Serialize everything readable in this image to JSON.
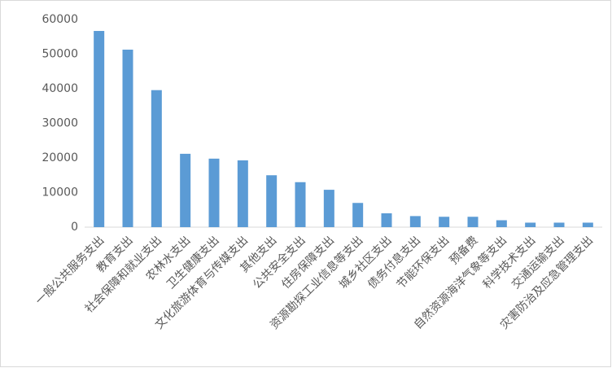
{
  "chart_data": {
    "type": "bar",
    "categories": [
      "一般公共服务支出",
      "教育支出",
      "社会保障和就业支出",
      "农林水支出",
      "卫生健康支出",
      "文化旅游体育与传媒支出",
      "其他支出",
      "公共安全支出",
      "住房保障支出",
      "资源勘探工业信息等支出",
      "城乡社区支出",
      "债务付息支出",
      "节能环保支出",
      "预备费",
      "自然资源海洋气象等支出",
      "科学技术支出",
      "交通运输支出",
      "灾害防治及应急管理支出"
    ],
    "values": [
      56700,
      51300,
      39600,
      21200,
      19800,
      19300,
      15000,
      13000,
      10800,
      7000,
      4000,
      3200,
      3000,
      3000,
      2000,
      1300,
      1300,
      1300
    ],
    "color": "#5b9bd5",
    "ylim": [
      0,
      60000
    ],
    "yticks": [
      0,
      10000,
      20000,
      30000,
      40000,
      50000,
      60000
    ],
    "grid": false
  }
}
